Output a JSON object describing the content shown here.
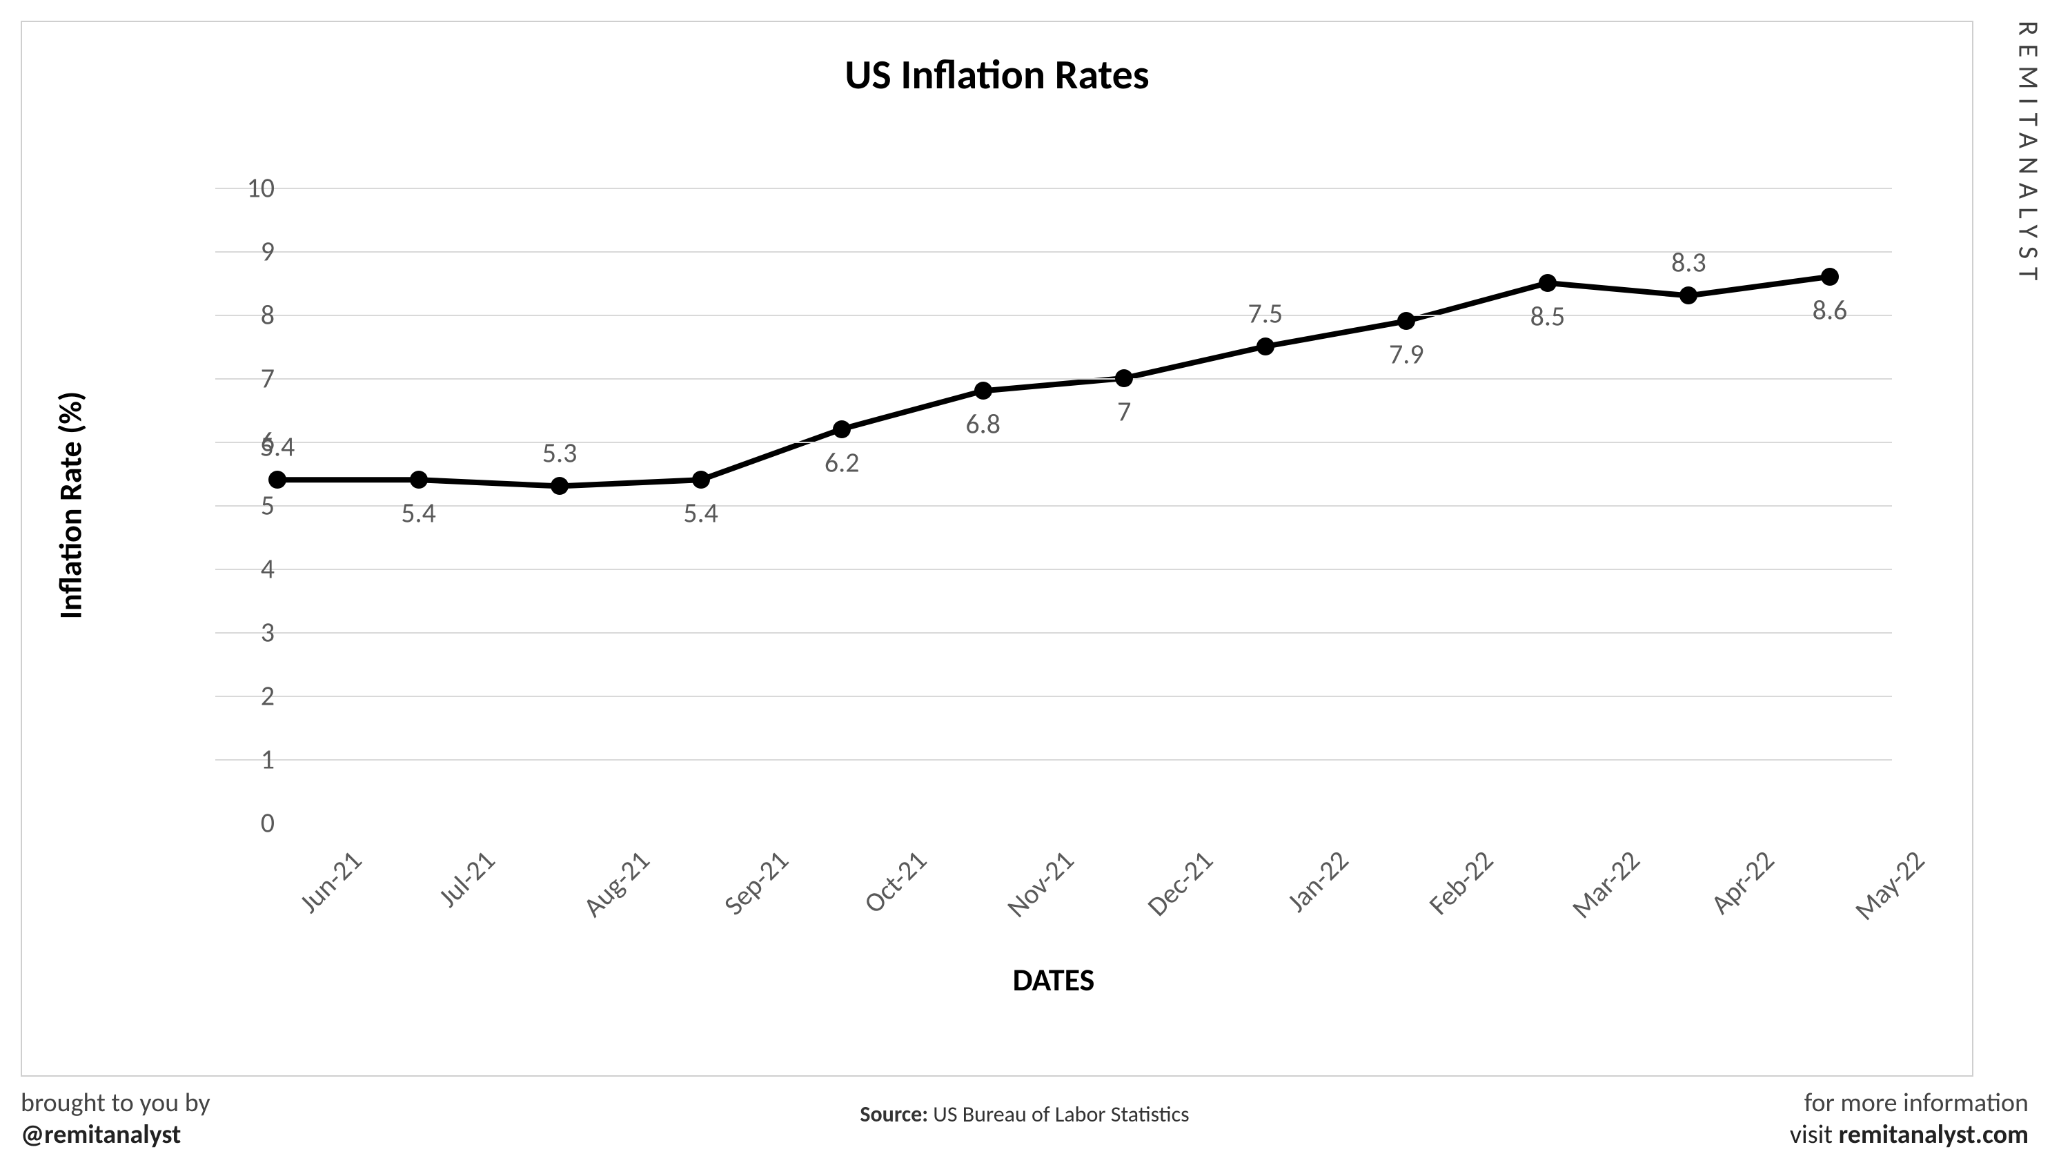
{
  "chart": {
    "type": "line",
    "title": "US Inflation Rates",
    "title_fontsize": 60,
    "ylabel": "Inflation Rate (%)",
    "xlabel": "DATES",
    "axis_label_fontsize": 46,
    "tick_fontsize": 40,
    "data_label_fontsize": 40,
    "background_color": "#ffffff",
    "grid_color": "#d9d9d9",
    "border_color": "#cfcfcf",
    "line_color": "#000000",
    "line_width": 8,
    "marker_color": "#000000",
    "marker_size": 26,
    "tick_color": "#595959",
    "data_label_color": "#595959",
    "ylim": [
      0,
      10
    ],
    "ytick_step": 1,
    "categories": [
      "Jun-21",
      "Jul-21",
      "Aug-21",
      "Sep-21",
      "Oct-21",
      "Nov-21",
      "Dec-21",
      "Jan-22",
      "Feb-22",
      "Mar-22",
      "Apr-22",
      "May-22"
    ],
    "values": [
      5.4,
      5.4,
      5.3,
      5.4,
      6.2,
      6.8,
      7.0,
      7.5,
      7.9,
      8.5,
      8.3,
      8.6
    ],
    "value_labels": [
      "5.4",
      "5.4",
      "5.3",
      "5.4",
      "6.2",
      "6.8",
      "7",
      "7.5",
      "7.9",
      "8.5",
      "8.3",
      "8.6"
    ],
    "label_position": [
      "above",
      "below",
      "above",
      "below",
      "below",
      "below",
      "below",
      "above",
      "below",
      "below",
      "above",
      "below"
    ],
    "xtick_rotation_deg": -45
  },
  "branding": {
    "vertical_text": "REMITANALYST",
    "vertical_fontsize": 40,
    "vertical_color": "#404040"
  },
  "footer": {
    "left_line1": "brought to you by",
    "left_line2": "@remitanalyst",
    "center_prefix": "Source:",
    "center_text": " US Bureau of Labor Statistics",
    "right_line1": "for more information",
    "right_line2_prefix": "visit ",
    "right_line2_bold": "remitanalyst.com",
    "fontsize": 38,
    "center_fontsize": 32
  }
}
